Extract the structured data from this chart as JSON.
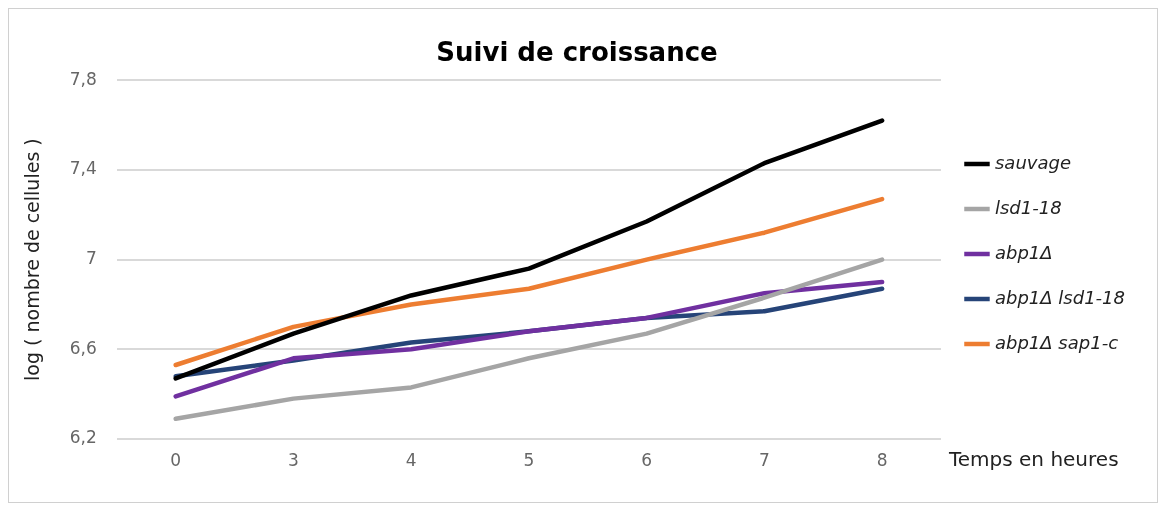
{
  "chart_data": {
    "type": "line",
    "title": "Suivi de croissance",
    "xlabel": "Temps en heures",
    "ylabel": "log ( nombre de cellules )",
    "categories": [
      "0",
      "3",
      "4",
      "5",
      "6",
      "7",
      "8"
    ],
    "ylim": [
      6.2,
      7.8
    ],
    "yticks": [
      {
        "value": 6.2,
        "label": "6,2"
      },
      {
        "value": 6.6,
        "label": "6,6"
      },
      7,
      {
        "value": 7.4,
        "label": "7,4"
      },
      {
        "value": 7.8,
        "label": "7,8"
      }
    ],
    "grid": "y",
    "legend": "right",
    "marker": "none",
    "line_style": "solid",
    "series": [
      {
        "name": "sauvage",
        "color": "#000000",
        "values": [
          6.47,
          6.67,
          6.84,
          6.96,
          7.17,
          7.43,
          7.62
        ]
      },
      {
        "name": "lsd1-18",
        "color": "#a5a5a5",
        "values": [
          6.29,
          6.38,
          6.43,
          6.56,
          6.67,
          6.83,
          7.0
        ]
      },
      {
        "name": "abp1Δ",
        "color": "#7030a0",
        "values": [
          6.39,
          6.56,
          6.6,
          6.68,
          6.74,
          6.85,
          6.9
        ]
      },
      {
        "name": "abp1Δ lsd1-18",
        "color": "#264478",
        "values": [
          6.48,
          6.55,
          6.63,
          6.68,
          6.74,
          6.77,
          6.87
        ]
      },
      {
        "name": "abp1Δ sap1-c",
        "color": "#ed7d31",
        "values": [
          6.53,
          6.7,
          6.8,
          6.87,
          7.0,
          7.12,
          7.27
        ]
      }
    ]
  }
}
